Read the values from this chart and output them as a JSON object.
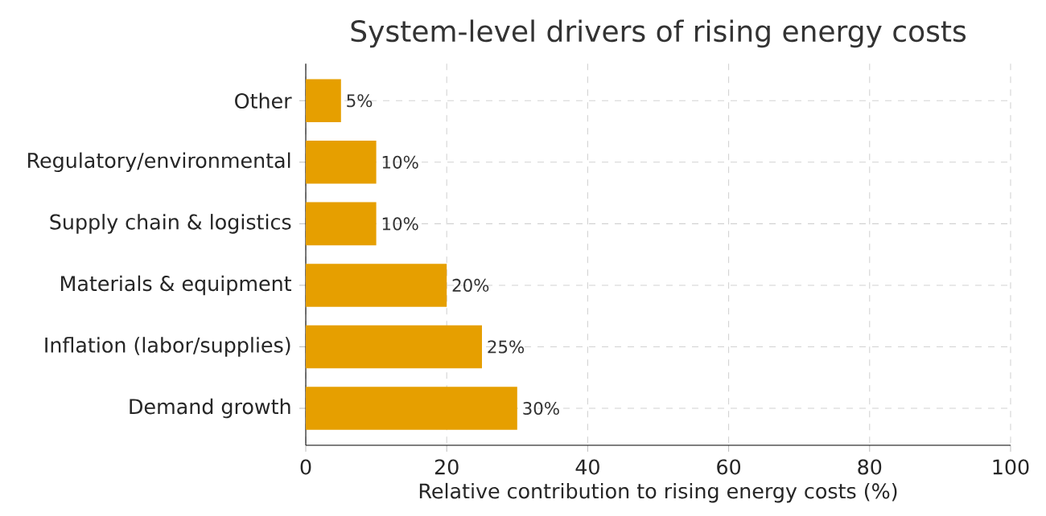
{
  "chart_data": {
    "type": "bar",
    "orientation": "horizontal",
    "title": "System-level drivers of rising energy costs",
    "xlabel": "Relative contribution to rising energy costs (%)",
    "categories": [
      "Other",
      "Regulatory/environmental",
      "Supply chain & logistics",
      "Materials & equipment",
      "Inflation (labor/supplies)",
      "Demand growth"
    ],
    "values": [
      5,
      10,
      10,
      20,
      25,
      30
    ],
    "value_labels": [
      "5%",
      "10%",
      "10%",
      "20%",
      "25%",
      "30%"
    ],
    "color": "#e69f00",
    "xlim": [
      0,
      100
    ],
    "xticks": [
      0,
      20,
      40,
      60,
      80,
      100
    ],
    "grid": true
  }
}
